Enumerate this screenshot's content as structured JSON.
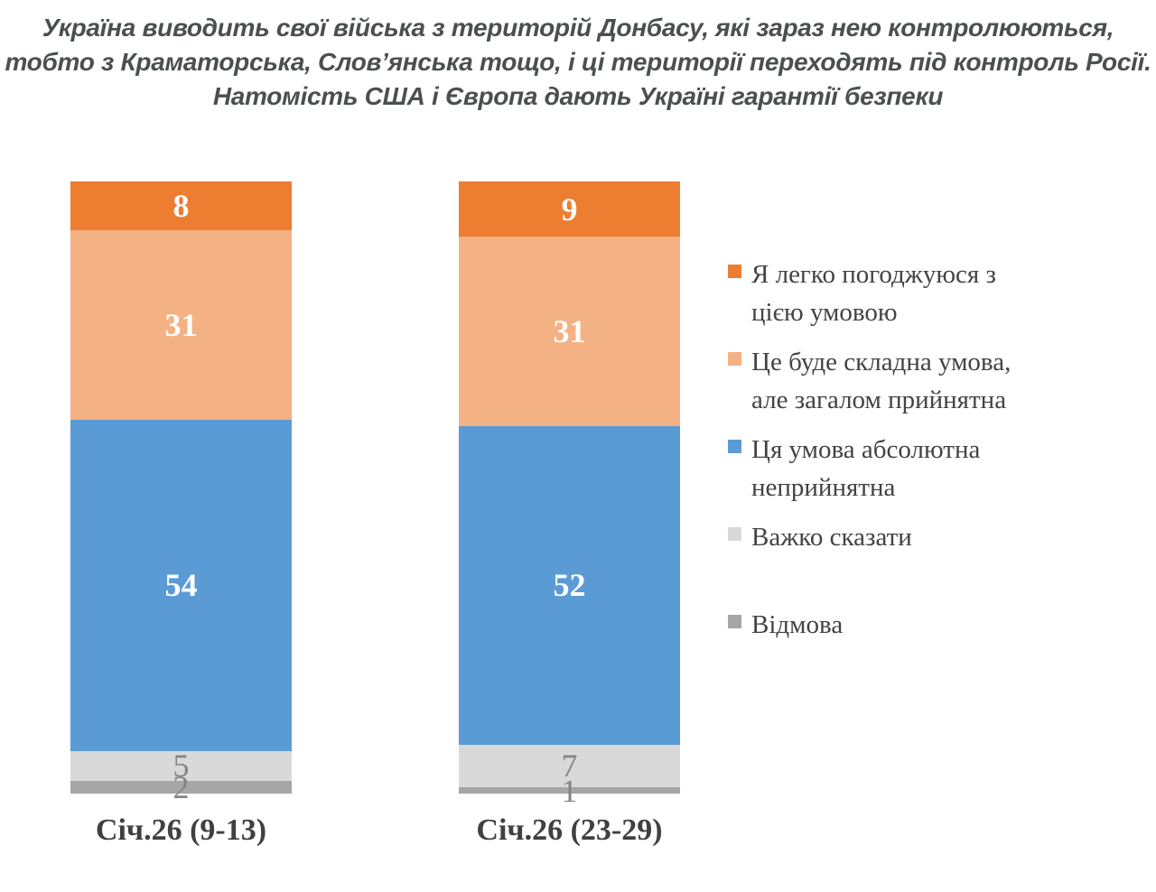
{
  "title_lines": [
    "Україна виводить свої війська з територій Донбасу, які зараз нею контролюються,",
    "тобто з Краматорська, Слов’янська тощо, і ці території переходять під контроль Росії.",
    "Натомість США і Європа дають Україні гарантії безпеки"
  ],
  "chart_data": {
    "type": "bar",
    "stacked": true,
    "orientation": "vertical",
    "categories": [
      "Січ.26 (9-13)",
      "Січ.26 (23-29)"
    ],
    "series": [
      {
        "name": "Я легко погоджуюся з цією умовою",
        "name_lines": [
          "Я легко погоджуюся з",
          "цією умовою"
        ],
        "values": [
          8,
          9
        ],
        "color": "#ED7D31",
        "label_color": "#FFFFFF"
      },
      {
        "name": "Це буде складна умова, але загалом прийнятна",
        "name_lines": [
          "Це буде складна умова,",
          "але загалом прийнятна"
        ],
        "values": [
          31,
          31
        ],
        "color": "#F4B183",
        "label_color": "#FFFFFF"
      },
      {
        "name": "Ця умова абсолютна неприйнятна",
        "name_lines": [
          "Ця умова абсолютна",
          "неприйнятна"
        ],
        "values": [
          54,
          52
        ],
        "color": "#5B9BD5",
        "label_color": "#FFFFFF"
      },
      {
        "name": "Важко сказати",
        "name_lines": [
          "Важко сказати"
        ],
        "values": [
          5,
          7
        ],
        "color": "#D9D9D9",
        "label_color": "#858585"
      },
      {
        "name": "Відмова",
        "name_lines": [
          "Відмова"
        ],
        "values": [
          2,
          1
        ],
        "color": "#A6A6A6",
        "label_color": "#858585"
      }
    ],
    "ylim": [
      0,
      100
    ],
    "grid": false,
    "axes_visible": false,
    "legend_position": "right",
    "data_labels": true
  },
  "colors": {
    "background": "#FFFFFF",
    "title_text": "#4C4F50",
    "axis_label_text": "#404040",
    "legend_text": "#434343"
  }
}
